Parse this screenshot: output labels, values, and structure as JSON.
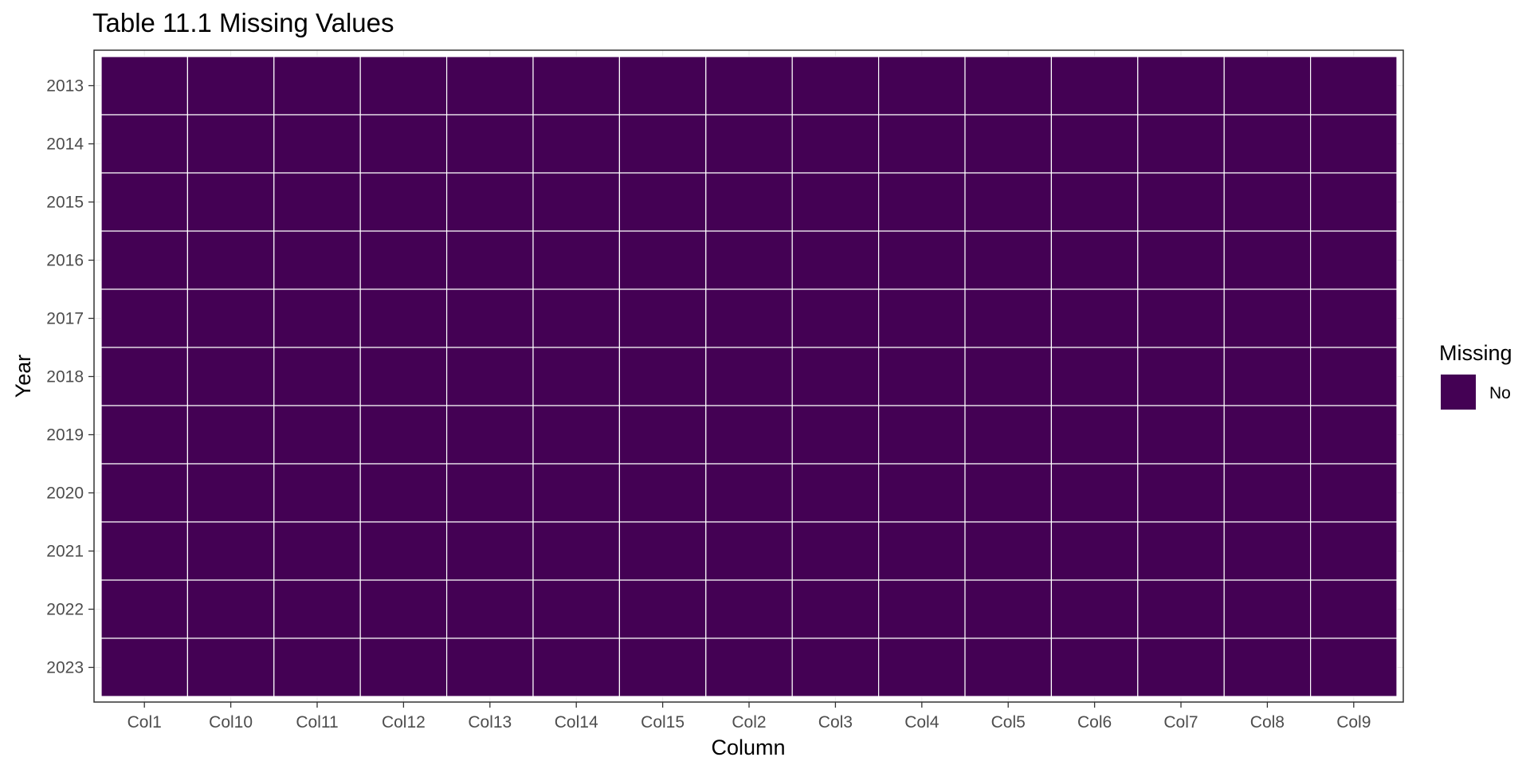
{
  "chart_data": {
    "type": "heatmap",
    "title": "Table 11.1 Missing Values",
    "xlabel": "Column",
    "ylabel": "Year",
    "x_categories": [
      "Col1",
      "Col10",
      "Col11",
      "Col12",
      "Col13",
      "Col14",
      "Col15",
      "Col2",
      "Col3",
      "Col4",
      "Col5",
      "Col6",
      "Col7",
      "Col8",
      "Col9"
    ],
    "y_categories": [
      "2013",
      "2014",
      "2015",
      "2016",
      "2017",
      "2018",
      "2019",
      "2020",
      "2021",
      "2022",
      "2023"
    ],
    "values": [
      [
        "No",
        "No",
        "No",
        "No",
        "No",
        "No",
        "No",
        "No",
        "No",
        "No",
        "No",
        "No",
        "No",
        "No",
        "No"
      ],
      [
        "No",
        "No",
        "No",
        "No",
        "No",
        "No",
        "No",
        "No",
        "No",
        "No",
        "No",
        "No",
        "No",
        "No",
        "No"
      ],
      [
        "No",
        "No",
        "No",
        "No",
        "No",
        "No",
        "No",
        "No",
        "No",
        "No",
        "No",
        "No",
        "No",
        "No",
        "No"
      ],
      [
        "No",
        "No",
        "No",
        "No",
        "No",
        "No",
        "No",
        "No",
        "No",
        "No",
        "No",
        "No",
        "No",
        "No",
        "No"
      ],
      [
        "No",
        "No",
        "No",
        "No",
        "No",
        "No",
        "No",
        "No",
        "No",
        "No",
        "No",
        "No",
        "No",
        "No",
        "No"
      ],
      [
        "No",
        "No",
        "No",
        "No",
        "No",
        "No",
        "No",
        "No",
        "No",
        "No",
        "No",
        "No",
        "No",
        "No",
        "No"
      ],
      [
        "No",
        "No",
        "No",
        "No",
        "No",
        "No",
        "No",
        "No",
        "No",
        "No",
        "No",
        "No",
        "No",
        "No",
        "No"
      ],
      [
        "No",
        "No",
        "No",
        "No",
        "No",
        "No",
        "No",
        "No",
        "No",
        "No",
        "No",
        "No",
        "No",
        "No",
        "No"
      ],
      [
        "No",
        "No",
        "No",
        "No",
        "No",
        "No",
        "No",
        "No",
        "No",
        "No",
        "No",
        "No",
        "No",
        "No",
        "No"
      ],
      [
        "No",
        "No",
        "No",
        "No",
        "No",
        "No",
        "No",
        "No",
        "No",
        "No",
        "No",
        "No",
        "No",
        "No",
        "No"
      ],
      [
        "No",
        "No",
        "No",
        "No",
        "No",
        "No",
        "No",
        "No",
        "No",
        "No",
        "No",
        "No",
        "No",
        "No",
        "No"
      ]
    ],
    "legend": {
      "title": "Missing",
      "position": "right",
      "entries": [
        {
          "label": "No",
          "color": "#440154"
        }
      ]
    },
    "colors": {
      "No": "#440154",
      "tile_border": "#ffffff",
      "panel_border": "#333333",
      "grid": "#ebebeb"
    },
    "grid": true
  }
}
